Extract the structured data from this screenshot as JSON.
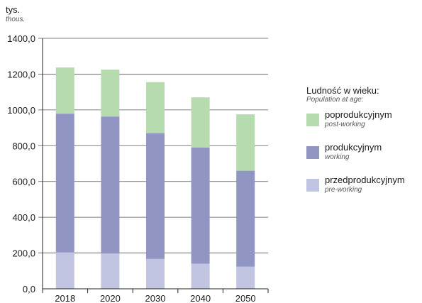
{
  "unit": {
    "main": "tys.",
    "sub": "thous."
  },
  "legend": {
    "title": "Ludność w wieku:",
    "subtitle": "Population at age:"
  },
  "colors": {
    "post_working": "#b6dbae",
    "working": "#9095c3",
    "pre_working": "#c2c5e2",
    "grid": "#555555",
    "axis": "#222222"
  },
  "chart_data": {
    "type": "bar",
    "stacked": true,
    "categories": [
      "2018",
      "2020",
      "2030",
      "2040",
      "2050"
    ],
    "series": [
      {
        "name": "przedprodukcyjnym",
        "subname": "pre-working",
        "color_key": "pre_working",
        "values": [
          203,
          197,
          167,
          140,
          124
        ]
      },
      {
        "name": "produkcyjnym",
        "subname": "working",
        "color_key": "working",
        "values": [
          776,
          766,
          703,
          650,
          536
        ]
      },
      {
        "name": "poprodukcyjnym",
        "subname": "post-working",
        "color_key": "post_working",
        "values": [
          258,
          262,
          285,
          280,
          315
        ]
      }
    ],
    "ylim": [
      0,
      1400
    ],
    "yticks": [
      "0,0",
      "200,0",
      "400,0",
      "600,0",
      "800,0",
      "1000,0",
      "1200,0",
      "1400,0"
    ],
    "grid": true,
    "legend_position": "right",
    "legend_order": [
      2,
      1,
      0
    ]
  }
}
